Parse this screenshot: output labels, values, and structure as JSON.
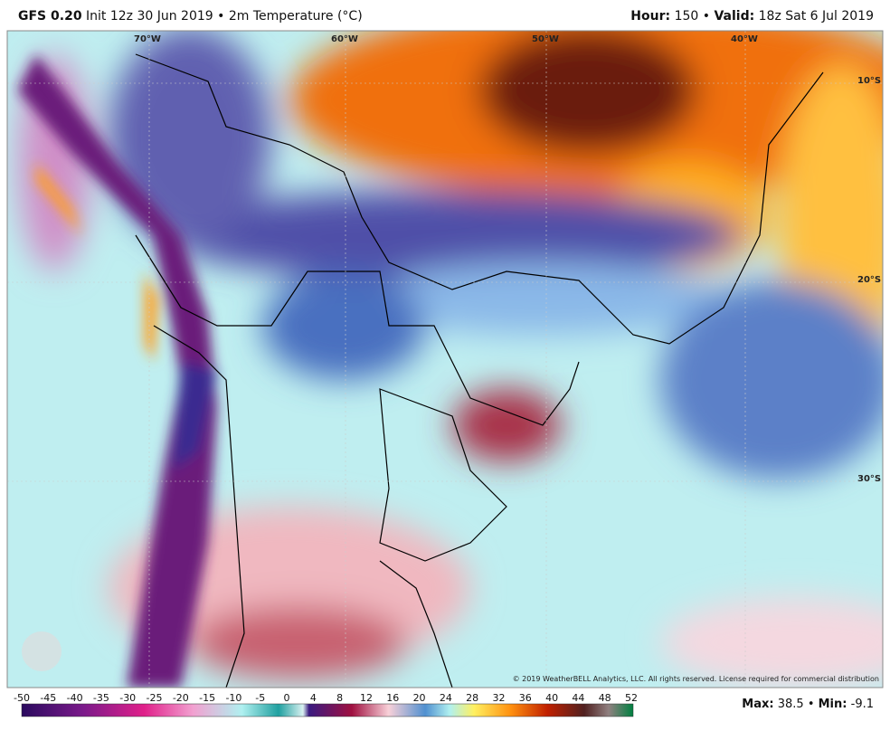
{
  "header": {
    "model": "GFS 0.20",
    "description": "Init 12z 30 Jun 2019 • 2m Temperature (°C)",
    "hour_label": "Hour:",
    "hour": "150 •",
    "valid_label": "Valid:",
    "valid": "18z Sat 6 Jul 2019"
  },
  "map": {
    "longitudes": [
      "70°W",
      "60°W",
      "50°W",
      "40°W"
    ],
    "latitudes": [
      "10°S",
      "20°S",
      "30°S"
    ],
    "copyright": "© 2019 WeatherBELL Analytics, LLC. All rights reserved. License required for commercial distribution"
  },
  "colorbar": {
    "labels": [
      -50,
      -45,
      -40,
      -35,
      -30,
      -25,
      -20,
      -15,
      -10,
      -5,
      0,
      4,
      8,
      12,
      16,
      20,
      24,
      28,
      32,
      36,
      40,
      44,
      48,
      52
    ]
  },
  "stats": {
    "max_label": "Max:",
    "max": 38.5,
    "sep": "•",
    "min_label": "Min:",
    "min": -9.1
  }
}
